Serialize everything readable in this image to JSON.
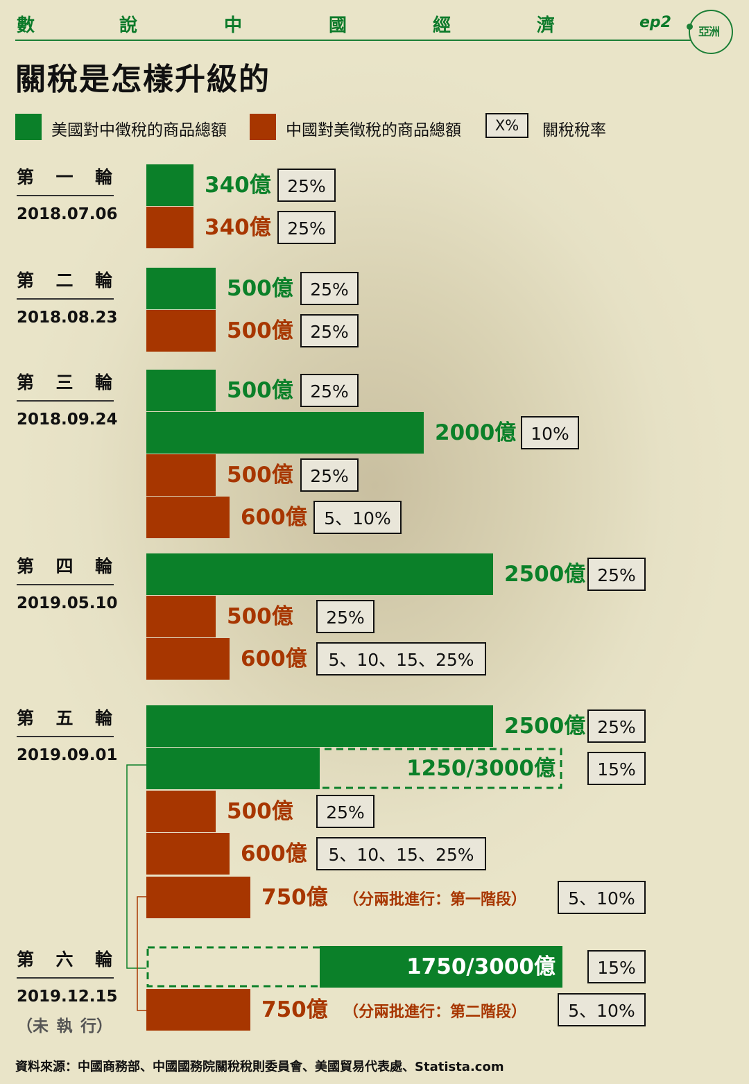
{
  "header": {
    "series_chars": [
      "數",
      "說",
      "中",
      "國",
      "經",
      "濟"
    ],
    "episode": "ep2",
    "logo_text": "亞洲"
  },
  "title": "關稅是怎樣升級的",
  "legend": {
    "us_label": "美國對中徵稅的商品總額",
    "cn_label": "中國對美徵稅的商品總額",
    "rate_box": "X%",
    "rate_label": "關稅稅率"
  },
  "colors": {
    "us": "#0b8029",
    "cn": "#a73600",
    "box_fill": "#e9e6d9"
  },
  "rounds": [
    {
      "name": [
        "第",
        "一",
        "輪"
      ],
      "date": "2018.07.06"
    },
    {
      "name": [
        "第",
        "二",
        "輪"
      ],
      "date": "2018.08.23"
    },
    {
      "name": [
        "第",
        "三",
        "輪"
      ],
      "date": "2018.09.24"
    },
    {
      "name": [
        "第",
        "四",
        "輪"
      ],
      "date": "2019.05.10"
    },
    {
      "name": [
        "第",
        "五",
        "輪"
      ],
      "date": "2019.09.01"
    },
    {
      "name": [
        "第",
        "六",
        "輪"
      ],
      "date": "2019.12.15",
      "note": [
        "（未",
        "執",
        "行）"
      ]
    }
  ],
  "chart_data": {
    "type": "bar",
    "orientation": "horizontal",
    "unit": "億",
    "bars": [
      {
        "round": 1,
        "side": "us",
        "value": 340,
        "label": "340億",
        "rate": "25%"
      },
      {
        "round": 1,
        "side": "cn",
        "value": 340,
        "label": "340億",
        "rate": "25%"
      },
      {
        "round": 2,
        "side": "us",
        "value": 500,
        "label": "500億",
        "rate": "25%"
      },
      {
        "round": 2,
        "side": "cn",
        "value": 500,
        "label": "500億",
        "rate": "25%"
      },
      {
        "round": 3,
        "side": "us",
        "value": 500,
        "label": "500億",
        "rate": "25%"
      },
      {
        "round": 3,
        "side": "us",
        "value": 2000,
        "label": "2000億",
        "rate": "10%"
      },
      {
        "round": 3,
        "side": "cn",
        "value": 500,
        "label": "500億",
        "rate": "25%"
      },
      {
        "round": 3,
        "side": "cn",
        "value": 600,
        "label": "600億",
        "rate": "5、10%"
      },
      {
        "round": 4,
        "side": "us",
        "value": 2500,
        "label": "2500億",
        "rate": "25%"
      },
      {
        "round": 4,
        "side": "cn",
        "value": 500,
        "label": "500億",
        "rate": "25%"
      },
      {
        "round": 4,
        "side": "cn",
        "value": 600,
        "label": "600億",
        "rate": "5、10、15、25%"
      },
      {
        "round": 5,
        "side": "us",
        "value": 2500,
        "label": "2500億",
        "rate": "25%"
      },
      {
        "round": 5,
        "side": "us",
        "value": 1250,
        "total": 3000,
        "label": "1250/3000億",
        "rate": "15%",
        "dashed": true,
        "fill": "start"
      },
      {
        "round": 5,
        "side": "cn",
        "value": 500,
        "label": "500億",
        "rate": "25%"
      },
      {
        "round": 5,
        "side": "cn",
        "value": 600,
        "label": "600億",
        "rate": "5、10、15、25%"
      },
      {
        "round": 5,
        "side": "cn",
        "value": 750,
        "label": "750億",
        "sublabel": "（分兩批進行：第一階段）",
        "rate": "5、10%"
      },
      {
        "round": 6,
        "side": "us",
        "value": 1750,
        "total": 3000,
        "label": "1750/3000億",
        "rate": "15%",
        "dashed": true,
        "fill": "end"
      },
      {
        "round": 6,
        "side": "cn",
        "value": 750,
        "label": "750億",
        "sublabel": "（分兩批進行：第二階段）",
        "rate": "5、10%"
      }
    ]
  },
  "source": "資料來源：中國商務部、中國國務院關稅稅則委員會、美國貿易代表處、Statista.com"
}
